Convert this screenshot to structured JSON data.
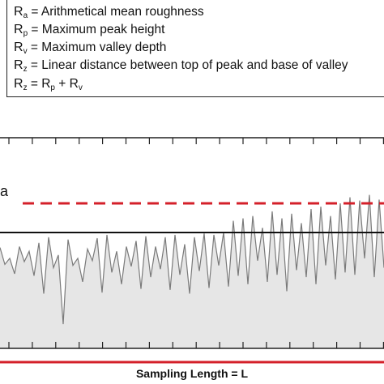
{
  "legend": [
    {
      "symbol": "R",
      "sub": "a",
      "text": " = Arithmetical mean roughness"
    },
    {
      "symbol": "R",
      "sub": "p",
      "text": " = Maximum peak height"
    },
    {
      "symbol": "R",
      "sub": "v",
      "text": " = Maximum valley depth"
    },
    {
      "symbol": "R",
      "sub": "z",
      "text": " = Linear distance between top of peak and base of valley"
    },
    {
      "symbol": "R",
      "sub": "z",
      "text": " = R",
      "extra": [
        {
          "sub": "p",
          "text": " + R"
        },
        {
          "sub": "v",
          "text": ""
        }
      ]
    }
  ],
  "ra_label": "a",
  "bottom_label": "Sampling Length = L",
  "colors": {
    "profile_line": "#7a7a7a",
    "profile_fill": "#e6e6e6",
    "mean_line": "#111111",
    "ra_line": "#d4202a",
    "baseline": "#d4202a",
    "frame": "#222222"
  },
  "profile": [
    0.32,
    0.68,
    0.55,
    0.88,
    0.3,
    0.62,
    0.4,
    0.92,
    0.22,
    1.3,
    0.1,
    0.75,
    0.48,
    1.95,
    0.15,
    0.7,
    0.55,
    1.05,
    0.35,
    0.6,
    0.12,
    1.28,
    0.05,
    0.85,
    0.4,
    1.1,
    0.3,
    0.72,
    0.18,
    1.2,
    0.08,
    0.95,
    0.3,
    0.78,
    0.1,
    1.22,
    0.05,
    0.9,
    0.25,
    1.3,
    0.1,
    0.82,
    0.02,
    1.18,
    0.05,
    0.7,
    0.0,
    1.15,
    -0.25,
    0.92,
    -0.3,
    1.1,
    -0.35,
    0.6,
    -0.1,
    1.05,
    -0.45,
    0.9,
    -0.3,
    1.25,
    -0.4,
    0.8,
    -0.2,
    0.95,
    -0.5,
    1.1,
    -0.55,
    0.7,
    -0.35,
    1.0,
    -0.62,
    0.85,
    -0.75,
    0.9,
    -0.68,
    0.55,
    -0.8,
    0.95,
    -0.7,
    0.75
  ],
  "ra_level": -0.45,
  "profile_scale_note": "profile values are depth below mean line in Ra units (negative = above mean)"
}
